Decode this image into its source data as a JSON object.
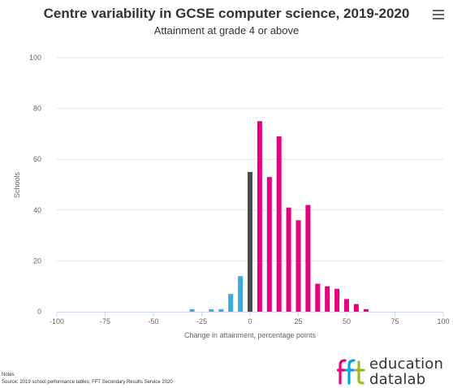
{
  "header": {
    "title": "Centre variability in GCSE computer science, 2019-2020",
    "subtitle": "Attainment at grade 4 or above",
    "menu_icon": "hamburger-menu-icon"
  },
  "footer": {
    "notes": "Notes",
    "source": "Source: 2019 school performance tables; FFT Secondary Results Service 2020"
  },
  "logo": {
    "mark": "fft",
    "word1": "education",
    "word2": "datalab",
    "colors": [
      "#e6007e",
      "#00a6e0",
      "#95c11f"
    ]
  },
  "chart_data": {
    "type": "bar",
    "title": "Centre variability in GCSE computer science, 2019-2020",
    "subtitle": "Attainment at grade 4 or above",
    "xlabel": "Change in attainment, percentage points",
    "ylabel": "Schools",
    "xlim": [
      -100,
      100
    ],
    "ylim": [
      0,
      100
    ],
    "x_ticks": [
      -100,
      -75,
      -50,
      -25,
      0,
      25,
      50,
      75,
      100
    ],
    "y_ticks": [
      0,
      20,
      40,
      60,
      80,
      100
    ],
    "grid": "horizontal",
    "colors": {
      "negative": "#3fa9e0",
      "zero": "#4a4a4a",
      "positive": "#e6007e"
    },
    "bars": [
      {
        "x": -30,
        "y": 1
      },
      {
        "x": -25,
        "y": 0
      },
      {
        "x": -20,
        "y": 1
      },
      {
        "x": -15,
        "y": 1
      },
      {
        "x": -10,
        "y": 7
      },
      {
        "x": -5,
        "y": 14
      },
      {
        "x": 0,
        "y": 55
      },
      {
        "x": 5,
        "y": 75
      },
      {
        "x": 10,
        "y": 53
      },
      {
        "x": 15,
        "y": 69
      },
      {
        "x": 20,
        "y": 41
      },
      {
        "x": 25,
        "y": 36
      },
      {
        "x": 30,
        "y": 42
      },
      {
        "x": 35,
        "y": 11
      },
      {
        "x": 40,
        "y": 10
      },
      {
        "x": 45,
        "y": 9
      },
      {
        "x": 50,
        "y": 5
      },
      {
        "x": 55,
        "y": 3
      },
      {
        "x": 60,
        "y": 1
      }
    ]
  }
}
